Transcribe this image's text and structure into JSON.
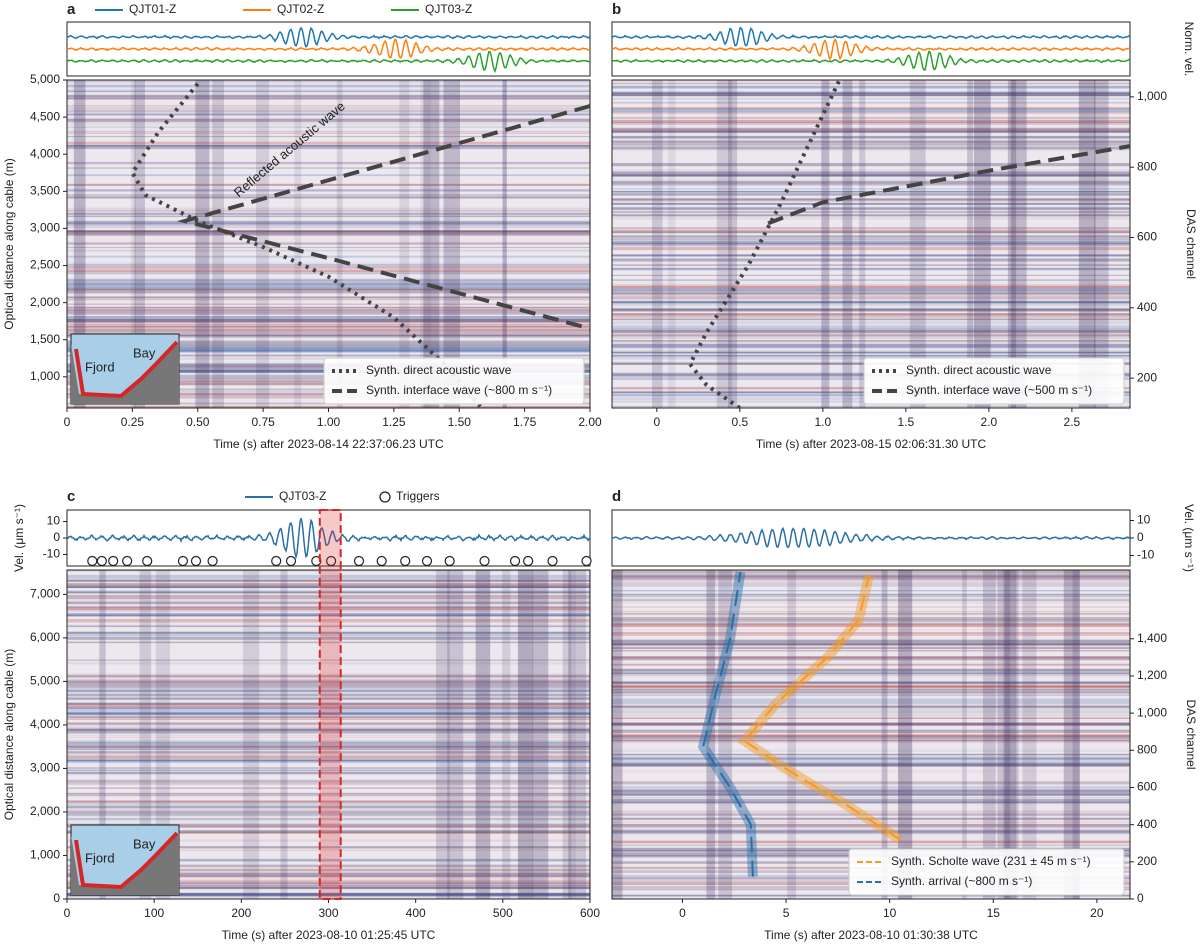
{
  "chart_data": [
    {
      "type": "line",
      "panel_label": "a",
      "trace_series": [
        {
          "name": "QJT01-Z",
          "color": "#1f77b4"
        },
        {
          "name": "QJT02-Z",
          "color": "#ff7f0e"
        },
        {
          "name": "QJT03-Z",
          "color": "#2ca02c"
        }
      ],
      "xlabel": "Time (s) after 2023-08-14 22:37:06.23 UTC",
      "ylabel": "Optical distance along cable (m)",
      "y_side": "left",
      "xlim": [
        0,
        2.0
      ],
      "xticks": [
        0,
        0.25,
        {
          "value": 0.5,
          "label": "0.50"
        },
        0.75,
        {
          "value": 1.0,
          "label": "1.00"
        },
        1.25,
        {
          "value": 1.5,
          "label": "1.50"
        },
        1.75,
        {
          "value": 2.0,
          "label": "2.00"
        }
      ],
      "ylim": [
        580,
        5000
      ],
      "yticks": [
        {
          "value": 1000,
          "label": "1,000"
        },
        {
          "value": 1500,
          "label": "1,500"
        },
        {
          "value": 2000,
          "label": "2,000"
        },
        {
          "value": 2500,
          "label": "2,500"
        },
        {
          "value": 3000,
          "label": "3,000"
        },
        {
          "value": 3500,
          "label": "3,500"
        },
        {
          "value": 4000,
          "label": "4,000"
        },
        {
          "value": 4500,
          "label": "4,500"
        },
        {
          "value": 5000,
          "label": "5,000"
        }
      ],
      "annotation": "Reflected acoustic wave",
      "inset_labels": [
        "Fjord",
        "Bay"
      ],
      "series": [
        {
          "name": "Synth. direct acoustic wave",
          "color": "#444444",
          "style": "dotted",
          "x": [
            0.5,
            0.35,
            0.25,
            0.3,
            0.5,
            0.75,
            1.0,
            1.25,
            1.45,
            1.58
          ],
          "values": [
            4950,
            4300,
            3750,
            3450,
            3100,
            2750,
            2350,
            1800,
            1150,
            600
          ]
        },
        {
          "name": "Synth. interface wave (~800 m s⁻¹)",
          "color": "#444444",
          "style": "dashed",
          "x": [
            2.0,
            1.0,
            0.45,
            1.0,
            2.0
          ],
          "values": [
            4650,
            3650,
            3100,
            2600,
            1650
          ]
        }
      ]
    },
    {
      "type": "line",
      "panel_label": "b",
      "trace_ylabel": "Norm. vel.",
      "xlabel": "Time (s) after 2023-08-15 02:06:31.30 UTC",
      "ylabel": "DAS channel",
      "y_side": "right",
      "xlim": [
        -0.27,
        2.85
      ],
      "xticks": [
        0,
        0.5,
        {
          "value": 1.0,
          "label": "1.0"
        },
        1.5,
        {
          "value": 2.0,
          "label": "2.0"
        },
        2.5
      ],
      "ylim": [
        115,
        1048
      ],
      "yticks": [
        200,
        400,
        600,
        800,
        {
          "value": 1000,
          "label": "1,000"
        }
      ],
      "series": [
        {
          "name": "Synth. direct acoustic wave",
          "color": "#444444",
          "style": "dotted",
          "x": [
            0.5,
            0.3,
            0.2,
            0.3,
            0.55,
            0.75,
            0.9,
            1.1
          ],
          "values": [
            115,
            180,
            240,
            330,
            520,
            700,
            850,
            1048
          ]
        },
        {
          "name": "Synth. interface wave (~500 m s⁻¹)",
          "color": "#444444",
          "style": "dashed",
          "x": [
            0.67,
            1.0,
            2.0,
            2.85
          ],
          "values": [
            640,
            700,
            790,
            860
          ]
        }
      ]
    },
    {
      "type": "line",
      "panel_label": "c",
      "trace_series": [
        {
          "name": "QJT03-Z",
          "color": "#2a6fa8"
        }
      ],
      "trace_ylabel": "Vel. (μm s⁻¹)",
      "trace_ylim": [
        -17,
        17
      ],
      "trace_yticks": [
        -10,
        0,
        10
      ],
      "triggers": {
        "name": "Triggers",
        "x": [
          29,
          40,
          53,
          69,
          92,
          133,
          148,
          167,
          240,
          257,
          286,
          303,
          335,
          361,
          388,
          413,
          439,
          479,
          514,
          529,
          557,
          596
        ]
      },
      "window": [
        290,
        314
      ],
      "xlabel": "Time (s) after 2023-08-10 01:25:45 UTC",
      "ylabel": "Optical distance along cable (m)",
      "y_side": "left",
      "xlim": [
        0,
        600
      ],
      "xticks": [
        0,
        100,
        200,
        300,
        400,
        500,
        600
      ],
      "ylim": [
        0,
        7560
      ],
      "yticks": [
        0,
        {
          "value": 1000,
          "label": "1,000"
        },
        {
          "value": 2000,
          "label": "2,000"
        },
        {
          "value": 3000,
          "label": "3,000"
        },
        {
          "value": 4000,
          "label": "4,000"
        },
        {
          "value": 5000,
          "label": "5,000"
        },
        {
          "value": 6000,
          "label": "6,000"
        },
        {
          "value": 7000,
          "label": "7,000"
        }
      ],
      "inset_labels": [
        "Fjord",
        "Bay"
      ],
      "series": []
    },
    {
      "type": "line",
      "panel_label": "d",
      "trace_ylabel": "Vel. (μm s⁻¹)",
      "trace_ylim": [
        -16,
        16
      ],
      "trace_yticks": [
        -10,
        0,
        10
      ],
      "xlabel": "Time (s) after 2023-08-10 01:30:38 UTC",
      "ylabel": "DAS channel",
      "y_side": "right",
      "xlim": [
        -3.4,
        21.6
      ],
      "xticks": [
        0,
        5,
        10,
        15,
        20
      ],
      "ylim": [
        0,
        1770
      ],
      "yticks": [
        0,
        200,
        400,
        600,
        800,
        {
          "value": 1000,
          "label": "1,000"
        },
        {
          "value": 1200,
          "label": "1,200"
        },
        {
          "value": 1400,
          "label": "1,400"
        }
      ],
      "series": [
        {
          "name": "Synth. Scholte wave (231 ± 45 m s⁻¹)",
          "color": "#f59a23",
          "style": "dashed",
          "x": [
            10.5,
            8,
            5,
            3.0,
            4.5,
            7,
            8.5,
            9.0
          ],
          "values": [
            320,
            500,
            700,
            850,
            1050,
            1300,
            1500,
            1740
          ]
        },
        {
          "name": "Synth. arrival (~800 m s⁻¹)",
          "color": "#2a6fa8",
          "style": "dashed",
          "x": [
            3.4,
            3.3,
            2.3,
            1.0,
            1.6,
            2.3,
            2.8
          ],
          "values": [
            120,
            400,
            600,
            820,
            1100,
            1400,
            1760
          ]
        }
      ]
    }
  ]
}
